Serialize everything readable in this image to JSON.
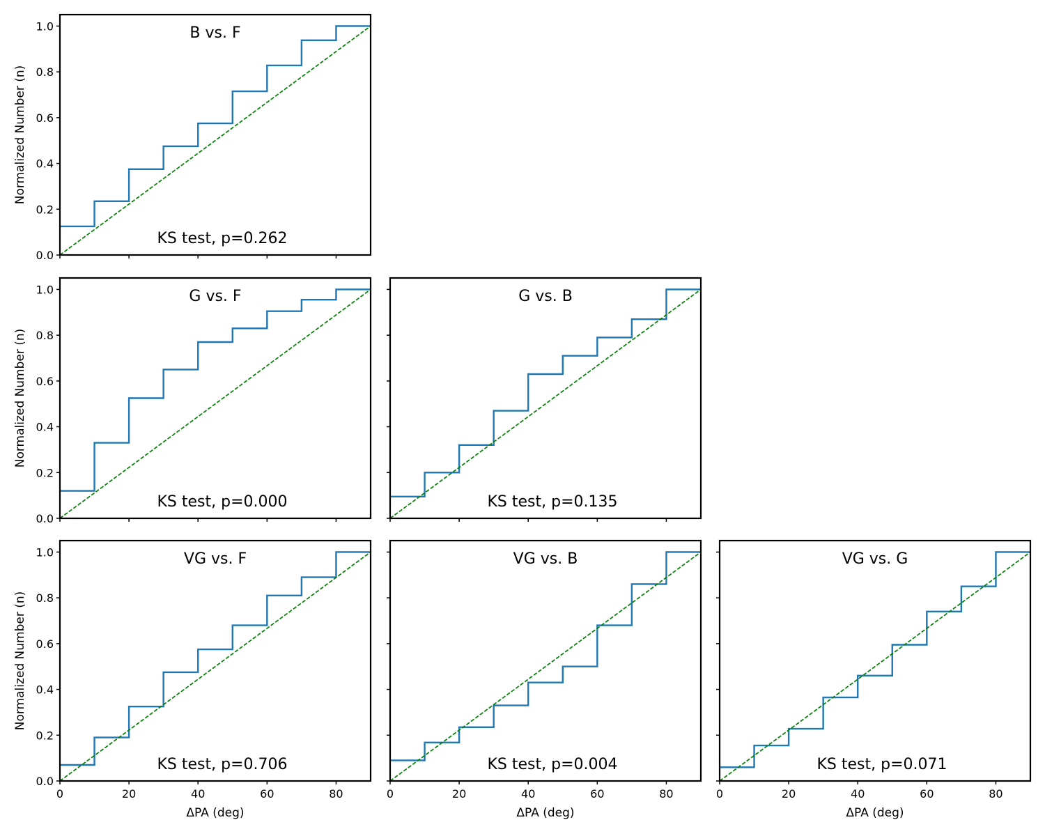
{
  "figure": {
    "colors": {
      "step": "#1f77b4",
      "reference": "#008000",
      "frame": "#000000"
    }
  },
  "chart_data": [
    {
      "type": "line",
      "title": "B vs. F",
      "annotation": "KS test, p=0.262",
      "xlabel": "",
      "ylabel": "Normalized Number (n)",
      "xlim": [
        0,
        90
      ],
      "ylim": [
        0,
        1.05
      ],
      "xticks": [
        0,
        20,
        40,
        60,
        80
      ],
      "yticks": [
        "0.0",
        "0.2",
        "0.4",
        "0.6",
        "0.8",
        "1.0"
      ],
      "show_xtick_labels": false,
      "show_ytick_labels": true,
      "series": [
        {
          "name": "cumulative",
          "style": "step",
          "x": [
            0,
            10,
            20,
            30,
            40,
            50,
            60,
            70,
            80,
            90
          ],
          "y": [
            0.125,
            0.235,
            0.375,
            0.475,
            0.575,
            0.715,
            0.828,
            0.938,
            1.0,
            1.0
          ]
        },
        {
          "name": "uniform",
          "style": "dashed",
          "x": [
            0,
            90
          ],
          "y": [
            0,
            1
          ]
        }
      ]
    },
    {
      "type": "line",
      "title": "G vs. F",
      "annotation": "KS test, p=0.000",
      "xlabel": "",
      "ylabel": "Normalized Number (n)",
      "xlim": [
        0,
        90
      ],
      "ylim": [
        0,
        1.05
      ],
      "xticks": [
        0,
        20,
        40,
        60,
        80
      ],
      "yticks": [
        "0.0",
        "0.2",
        "0.4",
        "0.6",
        "0.8",
        "1.0"
      ],
      "show_xtick_labels": false,
      "show_ytick_labels": true,
      "series": [
        {
          "name": "cumulative",
          "style": "step",
          "x": [
            0,
            10,
            20,
            30,
            40,
            50,
            60,
            70,
            80,
            90
          ],
          "y": [
            0.12,
            0.33,
            0.525,
            0.65,
            0.77,
            0.83,
            0.905,
            0.955,
            1.0,
            1.0
          ]
        },
        {
          "name": "uniform",
          "style": "dashed",
          "x": [
            0,
            90
          ],
          "y": [
            0,
            1
          ]
        }
      ]
    },
    {
      "type": "line",
      "title": "G vs. B",
      "annotation": "KS test, p=0.135",
      "xlabel": "",
      "ylabel": "",
      "xlim": [
        0,
        90
      ],
      "ylim": [
        0,
        1.05
      ],
      "xticks": [
        0,
        20,
        40,
        60,
        80
      ],
      "yticks": [
        "0.0",
        "0.2",
        "0.4",
        "0.6",
        "0.8",
        "1.0"
      ],
      "show_xtick_labels": false,
      "show_ytick_labels": false,
      "series": [
        {
          "name": "cumulative",
          "style": "step",
          "x": [
            0,
            10,
            20,
            30,
            40,
            50,
            60,
            70,
            80,
            90
          ],
          "y": [
            0.095,
            0.2,
            0.32,
            0.47,
            0.63,
            0.71,
            0.79,
            0.87,
            1.0,
            1.0
          ]
        },
        {
          "name": "uniform",
          "style": "dashed",
          "x": [
            0,
            90
          ],
          "y": [
            0,
            1
          ]
        }
      ]
    },
    {
      "type": "line",
      "title": "VG vs. F",
      "annotation": "KS test, p=0.706",
      "xlabel": "ΔPA (deg)",
      "ylabel": "Normalized Number (n)",
      "xlim": [
        0,
        90
      ],
      "ylim": [
        0,
        1.05
      ],
      "xticks": [
        0,
        20,
        40,
        60,
        80
      ],
      "yticks": [
        "0.0",
        "0.2",
        "0.4",
        "0.6",
        "0.8",
        "1.0"
      ],
      "show_xtick_labels": true,
      "show_ytick_labels": true,
      "series": [
        {
          "name": "cumulative",
          "style": "step",
          "x": [
            0,
            10,
            20,
            30,
            40,
            50,
            60,
            70,
            80,
            90
          ],
          "y": [
            0.07,
            0.19,
            0.325,
            0.475,
            0.575,
            0.68,
            0.81,
            0.89,
            1.0,
            1.0
          ]
        },
        {
          "name": "uniform",
          "style": "dashed",
          "x": [
            0,
            90
          ],
          "y": [
            0,
            1
          ]
        }
      ]
    },
    {
      "type": "line",
      "title": "VG vs. B",
      "annotation": "KS test, p=0.004",
      "xlabel": "ΔPA (deg)",
      "ylabel": "",
      "xlim": [
        0,
        90
      ],
      "ylim": [
        0,
        1.05
      ],
      "xticks": [
        0,
        20,
        40,
        60,
        80
      ],
      "yticks": [
        "0.0",
        "0.2",
        "0.4",
        "0.6",
        "0.8",
        "1.0"
      ],
      "show_xtick_labels": true,
      "show_ytick_labels": false,
      "series": [
        {
          "name": "cumulative",
          "style": "step",
          "x": [
            0,
            10,
            20,
            30,
            40,
            50,
            60,
            70,
            80,
            90
          ],
          "y": [
            0.09,
            0.168,
            0.235,
            0.33,
            0.43,
            0.5,
            0.68,
            0.86,
            1.0,
            1.0
          ]
        },
        {
          "name": "uniform",
          "style": "dashed",
          "x": [
            0,
            90
          ],
          "y": [
            0,
            1
          ]
        }
      ]
    },
    {
      "type": "line",
      "title": "VG vs. G",
      "annotation": "KS test, p=0.071",
      "xlabel": "ΔPA (deg)",
      "ylabel": "",
      "xlim": [
        0,
        90
      ],
      "ylim": [
        0,
        1.05
      ],
      "xticks": [
        0,
        20,
        40,
        60,
        80
      ],
      "yticks": [
        "0.0",
        "0.2",
        "0.4",
        "0.6",
        "0.8",
        "1.0"
      ],
      "show_xtick_labels": true,
      "show_ytick_labels": false,
      "series": [
        {
          "name": "cumulative",
          "style": "step",
          "x": [
            0,
            10,
            20,
            30,
            40,
            50,
            60,
            70,
            80,
            90
          ],
          "y": [
            0.06,
            0.155,
            0.228,
            0.365,
            0.46,
            0.595,
            0.74,
            0.85,
            1.0,
            1.0
          ]
        },
        {
          "name": "uniform",
          "style": "dashed",
          "x": [
            0,
            90
          ],
          "y": [
            0,
            1
          ]
        }
      ]
    }
  ]
}
